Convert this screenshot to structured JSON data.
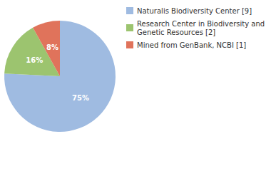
{
  "chart_data": {
    "type": "pie",
    "categories": [
      "Naturalis Biodiversity Center [9]",
      "Research Center in Biodiversity and Genetic Resources [2]",
      "Mined from GenBank, NCBI [1]"
    ],
    "values": [
      75,
      16,
      8
    ],
    "value_labels": [
      "75%",
      "16%",
      "8%"
    ],
    "colors": [
      "#9fbbe1",
      "#9cc46f",
      "#e0735b"
    ],
    "data_labels": true,
    "legend": "right"
  }
}
